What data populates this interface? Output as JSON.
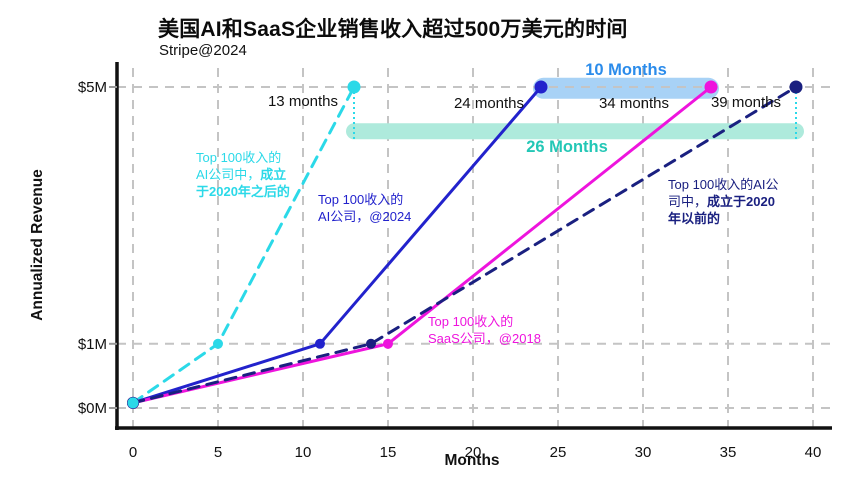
{
  "chart_data": {
    "type": "line",
    "title": "美国AI和SaaS企业销售收入超过500万美元的时间",
    "subtitle": "Stripe@2024",
    "xlabel": "Months",
    "ylabel": "Annualized Revenue",
    "x_ticks": [
      0,
      5,
      10,
      15,
      20,
      25,
      30,
      35,
      40
    ],
    "y_ticks": [
      {
        "value": 0,
        "label": "$0M"
      },
      {
        "value": 1,
        "label": "$1M"
      },
      {
        "value": 5,
        "label": "$5M"
      }
    ],
    "xlim": [
      0,
      42
    ],
    "ylim": [
      0,
      5.3
    ],
    "grid": true,
    "grid_color": "#c4c4c4",
    "axis_color": "#111111",
    "series": [
      {
        "name": "Top 100收入的AI公司中，成立于2020年之后的",
        "color": "#2bd9e8",
        "style": "dashed",
        "x": [
          0,
          5,
          13
        ],
        "y": [
          0.08,
          1,
          5
        ],
        "months_to_5m": 13
      },
      {
        "name": "Top 100收入的AI公司，@2024",
        "color": "#2222cc",
        "style": "solid",
        "x": [
          0,
          11,
          24
        ],
        "y": [
          0.08,
          1,
          5
        ],
        "months_to_5m": 24
      },
      {
        "name": "Top 100收入的SaaS公司，@2018",
        "color": "#ee14dd",
        "style": "solid",
        "x": [
          0,
          15,
          34
        ],
        "y": [
          0.08,
          1,
          5
        ],
        "months_to_5m": 34
      },
      {
        "name": "Top 100收入的AI公司中，成立于2020年以前的",
        "color": "#1a2080",
        "style": "dashed",
        "x": [
          0,
          14,
          39
        ],
        "y": [
          0.08,
          1,
          5
        ],
        "months_to_5m": 39
      }
    ],
    "point_labels": [
      {
        "text": "13 months"
      },
      {
        "text": "24 months"
      },
      {
        "text": "34 months"
      },
      {
        "text": "39 months"
      }
    ],
    "highlights": [
      {
        "label": "10 Months",
        "from_month": 24,
        "to_month": 34,
        "at_value": 4.98,
        "bar_color": "#a8d2f6",
        "text_color": "#2b8ceb"
      },
      {
        "label": "26 Months",
        "from_month": 13,
        "to_month": 39,
        "at_value": 4.31,
        "bar_color": "#aeeadc",
        "text_color": "#23c7b6",
        "connector_color": "#2bd9e8",
        "connectors": [
          13,
          39
        ]
      }
    ],
    "series_annotations": [
      {
        "pre": "Top 100收入的\nAI公司中，",
        "bold": "成立\n于2020年之后的",
        "color": "#2bd9e8"
      },
      {
        "pre": "Top 100收入的\nAI公司，@2024",
        "bold": "",
        "color": "#2222cc"
      },
      {
        "pre": "Top 100收入的\nSaaS公司，@2018",
        "bold": "",
        "color": "#ee14dd"
      },
      {
        "pre": "Top 100收入的AI公\n司中，",
        "bold": "成立于2020\n年以前的",
        "color": "#1a2080"
      }
    ]
  }
}
